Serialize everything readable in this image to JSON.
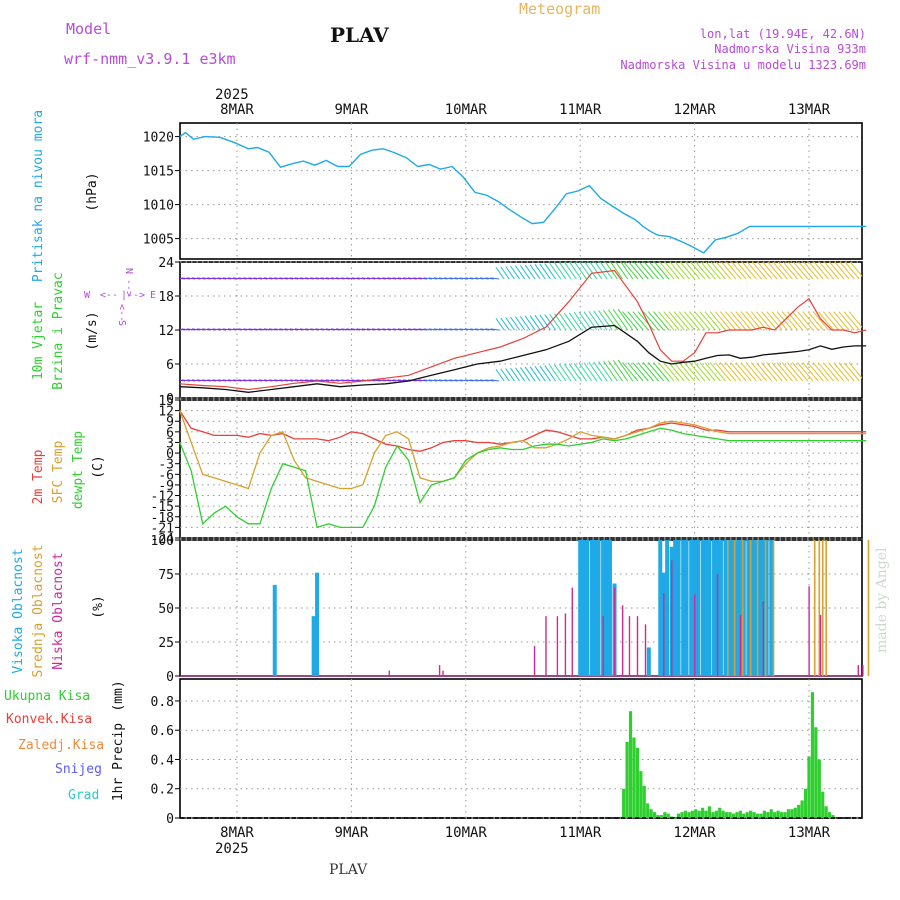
{
  "header": {
    "model_label": "Model",
    "model_name": "wrf-nmm_v3.9.1 e3km",
    "station": "PLAV",
    "chart_title": "Meteogram",
    "lonlat": "lon,lat (19.94E, 42.6N)",
    "elevation": "Nadmorska Visina 933m",
    "model_elevation": "Nadmorska Visina u modelu 1323.69m"
  },
  "footer": {
    "station": "PLAV",
    "credit": "made by Angel"
  },
  "colors": {
    "pressure": "#1fa9e6",
    "t2m": "#e8403a",
    "sfc": "#d9a030",
    "dew": "#2fcf2f",
    "high_cloud": "#1fa9e6",
    "mid_cloud": "#d9a030",
    "low_cloud": "#cc2a9a",
    "precip": "#2fcf2f",
    "grid": "#999999",
    "title": "#e8b560",
    "magenta": "#b84ad8"
  },
  "chart_data": [
    {
      "type": "line",
      "name": "pressure",
      "ylabel": "Pritisak na nivou mora",
      "unit": "(hPa)",
      "ylim": [
        1002,
        1022
      ],
      "yticks": [
        "1005",
        "1010",
        "1015",
        "1020"
      ],
      "x_days": [
        -0.5,
        -0.45,
        -0.38,
        -0.28,
        -0.15,
        -0.02,
        0.1,
        0.18,
        0.28,
        0.38,
        0.48,
        0.58,
        0.68,
        0.78,
        0.88,
        0.98,
        1.08,
        1.18,
        1.28,
        1.38,
        1.48,
        1.58,
        1.68,
        1.78,
        1.88,
        1.98,
        2.08,
        2.18,
        2.28,
        2.38,
        2.48,
        2.58,
        2.68,
        2.78,
        2.88,
        2.98,
        3.08,
        3.18,
        3.28,
        3.38,
        3.48,
        3.55,
        3.62,
        3.68,
        3.78,
        3.88,
        3.98,
        4.08,
        4.18,
        4.28,
        4.38,
        4.48,
        4.58,
        4.68,
        4.78,
        4.88,
        4.98,
        5.08,
        5.18,
        5.28,
        5.38,
        5.5
      ],
      "values": [
        1020.0,
        1020.6,
        1019.6,
        1020.0,
        1019.9,
        1019.1,
        1018.2,
        1018.4,
        1017.7,
        1015.5,
        1016.0,
        1016.4,
        1015.8,
        1016.5,
        1015.6,
        1015.6,
        1017.4,
        1018.0,
        1018.2,
        1017.6,
        1016.9,
        1015.6,
        1015.9,
        1015.2,
        1015.6,
        1014.0,
        1011.8,
        1011.4,
        1010.5,
        1009.3,
        1008.2,
        1007.2,
        1007.4,
        1009.4,
        1011.6,
        1012.0,
        1012.8,
        1010.9,
        1009.8,
        1008.7,
        1007.8,
        1006.8,
        1006.0,
        1005.5,
        1005.3,
        1004.6,
        1003.8,
        1002.9,
        1004.8,
        1005.2,
        1005.8,
        1006.8,
        1006.8,
        1006.8,
        1006.8,
        1006.8,
        1006.8,
        1006.8,
        1006.8,
        1006.8,
        1006.8,
        1006.8
      ]
    },
    {
      "type": "line",
      "name": "wind",
      "ylabel": "10m Vjetar",
      "ylabel2": "Brzina i Pravac",
      "unit": "(m/s)",
      "ylim": [
        0,
        24
      ],
      "yticks": [
        "0",
        "6",
        "12",
        "18",
        "24"
      ],
      "compass": {
        "n": "N",
        "s": "S",
        "w": "W",
        "e": "E",
        "arrow_left": "<--",
        "arrow_right": "-->",
        "bar": "|"
      },
      "x_days": [
        -0.5,
        -0.3,
        -0.1,
        0.1,
        0.3,
        0.5,
        0.7,
        0.9,
        1.1,
        1.3,
        1.5,
        1.7,
        1.9,
        2.1,
        2.3,
        2.5,
        2.7,
        2.9,
        3.1,
        3.3,
        3.5,
        3.6,
        3.7,
        3.8,
        3.9,
        4.0,
        4.1,
        4.2,
        4.3,
        4.4,
        4.5,
        4.6,
        4.7,
        4.8,
        4.9,
        5.0,
        5.1,
        5.2,
        5.3,
        5.4,
        5.5
      ],
      "mean_speed": [
        2.0,
        1.8,
        1.5,
        1.0,
        1.5,
        2.0,
        2.5,
        2.0,
        2.3,
        2.5,
        3.0,
        4.0,
        5.0,
        6.0,
        6.5,
        7.5,
        8.5,
        10.0,
        12.5,
        12.8,
        10.0,
        8.0,
        6.5,
        6.0,
        6.3,
        6.5,
        7.0,
        7.5,
        7.6,
        7.0,
        7.2,
        7.6,
        7.8,
        8.0,
        8.2,
        8.5,
        9.2,
        8.6,
        9.0,
        9.2,
        9.2
      ],
      "gust_speed": [
        2.5,
        2.2,
        2.0,
        1.5,
        2.0,
        2.6,
        3.0,
        2.6,
        3.0,
        3.5,
        4.0,
        5.5,
        7.0,
        8.0,
        9.0,
        10.5,
        12.5,
        17.0,
        22.0,
        22.5,
        17.0,
        13.0,
        8.5,
        6.5,
        6.5,
        8.0,
        11.5,
        11.5,
        12.0,
        12.0,
        12.0,
        12.5,
        12.0,
        14.0,
        16.0,
        17.5,
        14.0,
        12.0,
        12.0,
        11.5,
        12.0
      ]
    },
    {
      "type": "line",
      "name": "temperature",
      "ylabel": "2m Temp",
      "ylabel2": "SFC Temp",
      "ylabel3": "dewpt Temp",
      "unit": "(C)",
      "ylim": [
        -24,
        15
      ],
      "yticks": [
        "-24",
        "-21",
        "-18",
        "-15",
        "-12",
        "-9",
        "-6",
        "-3",
        "0",
        "3",
        "6",
        "9",
        "12",
        "15"
      ],
      "x_days": [
        -0.5,
        -0.4,
        -0.3,
        -0.2,
        -0.1,
        0.0,
        0.1,
        0.2,
        0.3,
        0.4,
        0.5,
        0.6,
        0.7,
        0.8,
        0.9,
        1.0,
        1.1,
        1.2,
        1.3,
        1.4,
        1.5,
        1.6,
        1.7,
        1.8,
        1.9,
        2.0,
        2.1,
        2.2,
        2.3,
        2.4,
        2.5,
        2.6,
        2.7,
        2.8,
        2.9,
        3.0,
        3.1,
        3.2,
        3.3,
        3.4,
        3.5,
        3.6,
        3.7,
        3.8,
        3.9,
        4.0,
        4.1,
        4.2,
        4.3,
        4.4,
        4.5,
        4.6,
        4.7,
        4.8,
        4.9,
        5.0,
        5.1,
        5.2,
        5.3,
        5.4,
        5.5
      ],
      "t2m": [
        12.0,
        7.0,
        6.0,
        5.0,
        5.0,
        5.0,
        4.5,
        5.5,
        5.0,
        5.5,
        4.0,
        4.0,
        4.0,
        3.5,
        4.5,
        6.0,
        5.5,
        4.0,
        2.5,
        2.0,
        1.0,
        0.5,
        1.5,
        3.0,
        3.5,
        3.5,
        3.0,
        3.0,
        2.5,
        3.0,
        3.5,
        5.0,
        6.5,
        6.0,
        5.0,
        4.0,
        4.0,
        4.5,
        4.0,
        5.0,
        6.5,
        7.0,
        8.0,
        8.5,
        8.0,
        7.5,
        6.5,
        6.5,
        6.0,
        6.0,
        6.0,
        6.0,
        6.0,
        6.0,
        6.0,
        6.0,
        6.0,
        6.0,
        6.0,
        6.0,
        6.0
      ],
      "sfc": [
        12.0,
        3.0,
        -6.0,
        -7.0,
        -8.0,
        -9.0,
        -10.0,
        0.0,
        5.0,
        6.0,
        -2.0,
        -7.0,
        -8.0,
        -9.0,
        -10.0,
        -10.0,
        -9.0,
        0.0,
        5.0,
        6.0,
        4.0,
        -7.0,
        -8.0,
        -8.0,
        -7.0,
        -3.0,
        0.0,
        1.5,
        2.0,
        3.0,
        3.5,
        1.5,
        1.5,
        2.5,
        4.0,
        6.0,
        5.0,
        4.5,
        4.0,
        5.0,
        6.0,
        7.0,
        8.5,
        9.0,
        8.5,
        8.0,
        7.0,
        6.0,
        5.5,
        5.5,
        5.5,
        5.5,
        5.5,
        5.5,
        5.5,
        5.5,
        5.5,
        5.5,
        5.5,
        5.5,
        5.5
      ],
      "dew": [
        3.0,
        -5.0,
        -20.0,
        -17.0,
        -15.0,
        -18.0,
        -20.0,
        -20.0,
        -10.0,
        -3.0,
        -4.0,
        -5.0,
        -21.0,
        -20.0,
        -21.0,
        -21.0,
        -21.0,
        -15.0,
        -4.0,
        2.0,
        -2.0,
        -14.0,
        -9.0,
        -8.0,
        -7.0,
        -2.0,
        0.0,
        1.0,
        1.5,
        1.0,
        1.0,
        2.0,
        2.5,
        2.5,
        2.0,
        2.5,
        3.0,
        4.0,
        3.5,
        4.0,
        5.0,
        6.0,
        7.0,
        6.5,
        5.5,
        5.0,
        4.5,
        4.0,
        3.5,
        3.5,
        3.5,
        3.5,
        3.5,
        3.5,
        3.5,
        3.5,
        3.5,
        3.5,
        3.5,
        3.5,
        3.5
      ]
    },
    {
      "type": "bar",
      "name": "clouds",
      "ylabel": "Visoka Oblacnost",
      "ylabel2": "Srednja Oblacnost",
      "ylabel3": "Niska Oblacnost",
      "unit": "(%)",
      "ylim": [
        0,
        100
      ],
      "yticks": [
        "0",
        "25",
        "50",
        "75",
        "100"
      ],
      "high": {
        "x_days": [
          0.33,
          0.67,
          0.7,
          3.0,
          3.03,
          3.06,
          3.1,
          3.13,
          3.16,
          3.2,
          3.23,
          3.26,
          3.3,
          3.6,
          3.7,
          3.73,
          3.76,
          3.8,
          3.83,
          3.86,
          3.9,
          3.93,
          3.97,
          4.0,
          4.03,
          4.07,
          4.1,
          4.13,
          4.17,
          4.2,
          4.23,
          4.27,
          4.3,
          4.33,
          4.37,
          4.4,
          4.43,
          4.47,
          4.5,
          4.53,
          4.57,
          4.6,
          4.63,
          4.67
        ],
        "values": [
          67,
          44,
          76,
          100,
          100,
          100,
          100,
          100,
          100,
          100,
          100,
          100,
          68,
          21,
          100,
          76,
          100,
          95,
          100,
          100,
          100,
          100,
          100,
          100,
          100,
          100,
          100,
          100,
          100,
          100,
          100,
          100,
          100,
          100,
          100,
          100,
          100,
          100,
          100,
          100,
          100,
          100,
          100,
          100
        ]
      },
      "mid": {
        "x_days": [
          4.27,
          4.33,
          4.4,
          4.47,
          4.53,
          4.6,
          4.67,
          5.03,
          5.07,
          5.1,
          5.13,
          5.5
        ],
        "values": [
          100,
          100,
          100,
          100,
          100,
          100,
          100,
          100,
          100,
          100,
          100,
          100
        ]
      },
      "low": {
        "x_days": [
          1.33,
          1.77,
          1.8,
          2.6,
          2.7,
          2.8,
          2.87,
          2.93,
          3.2,
          3.3,
          3.37,
          3.43,
          3.5,
          3.57,
          3.73,
          3.8,
          4.0,
          4.2,
          4.4,
          4.6,
          5.0,
          5.1,
          5.43,
          5.47
        ],
        "values": [
          4,
          8,
          4,
          22,
          44,
          44,
          46,
          65,
          44,
          65,
          52,
          44,
          44,
          38,
          61,
          85,
          60,
          75,
          45,
          55,
          66,
          45,
          8,
          8
        ]
      }
    },
    {
      "type": "bar",
      "name": "precipitation",
      "ylabel": "1hr Precip",
      "unit": "(mm)",
      "ylim": [
        0,
        0.95
      ],
      "yticks": [
        "0",
        "0.2",
        "0.4",
        "0.6",
        "0.8"
      ],
      "legend": [
        "Ukupna Kisa",
        "Konvek.Kisa",
        "Zaledj.Kisa",
        "Snijeg",
        "Grad"
      ],
      "x_days": [
        3.38,
        3.41,
        3.44,
        3.47,
        3.5,
        3.53,
        3.56,
        3.59,
        3.62,
        3.65,
        3.68,
        3.71,
        3.74,
        3.77,
        3.8,
        3.83,
        3.86,
        3.89,
        3.92,
        3.95,
        3.98,
        4.01,
        4.04,
        4.07,
        4.1,
        4.13,
        4.16,
        4.19,
        4.22,
        4.25,
        4.28,
        4.31,
        4.34,
        4.37,
        4.4,
        4.43,
        4.46,
        4.49,
        4.52,
        4.55,
        4.58,
        4.61,
        4.64,
        4.67,
        4.7,
        4.73,
        4.76,
        4.79,
        4.82,
        4.85,
        4.88,
        4.91,
        4.94,
        4.97,
        5.0,
        5.03,
        5.06,
        5.09,
        5.12,
        5.15,
        5.18,
        5.21
      ],
      "values": [
        0.2,
        0.52,
        0.73,
        0.55,
        0.48,
        0.32,
        0.22,
        0.1,
        0.06,
        0.04,
        0.02,
        0.02,
        0.04,
        0.03,
        0.01,
        0.0,
        0.03,
        0.04,
        0.05,
        0.04,
        0.05,
        0.06,
        0.05,
        0.07,
        0.05,
        0.08,
        0.04,
        0.05,
        0.07,
        0.05,
        0.04,
        0.04,
        0.03,
        0.04,
        0.05,
        0.03,
        0.04,
        0.05,
        0.04,
        0.03,
        0.03,
        0.05,
        0.04,
        0.06,
        0.04,
        0.05,
        0.04,
        0.04,
        0.06,
        0.06,
        0.07,
        0.09,
        0.12,
        0.2,
        0.42,
        0.86,
        0.62,
        0.4,
        0.18,
        0.08,
        0.04,
        0.02
      ]
    }
  ],
  "xaxis": {
    "ticks": [
      "8MAR",
      "9MAR",
      "10MAR",
      "11MAR",
      "12MAR",
      "13MAR"
    ],
    "year": "2025"
  }
}
